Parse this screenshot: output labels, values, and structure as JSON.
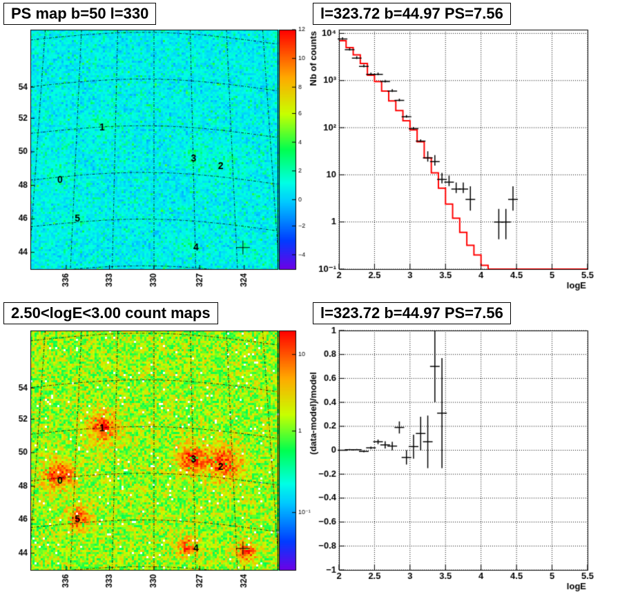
{
  "chart_data": [
    {
      "type": "heatmap",
      "title": "PS map b=50 l=330",
      "x_tick_labels": [
        "336",
        "333",
        "330",
        "327",
        "324"
      ],
      "y_tick_labels": [
        "44",
        "46",
        "48",
        "50",
        "52",
        "54"
      ],
      "colorbar_ticks": [
        "12",
        "10",
        "8",
        "6",
        "4",
        "2",
        "0",
        "−2",
        "−4"
      ],
      "colorbar_range": [
        -5,
        12
      ],
      "colorbar_scale": "linear",
      "source_labels": [
        "0",
        "1",
        "2",
        "3",
        "4",
        "5"
      ]
    },
    {
      "type": "line",
      "title": "l=323.72 b=44.97 PS=7.56",
      "xlabel": "logE",
      "ylabel": "Nb of counts",
      "yscale": "log",
      "xlim": [
        2,
        5.5
      ],
      "ylim": [
        0.1,
        12000
      ],
      "x_tick_labels": [
        "2",
        "2.5",
        "3",
        "3.5",
        "4",
        "4.5",
        "5",
        "5.5"
      ],
      "y_tick_labels": [
        "10⁻¹",
        "1",
        "10",
        "10²",
        "10³",
        "10⁴"
      ],
      "grid": true,
      "series": [
        {
          "role": "model",
          "color": "#ff0000",
          "bin_edges": [
            2.0,
            2.1,
            2.2,
            2.3,
            2.4,
            2.5,
            2.6,
            2.7,
            2.8,
            2.9,
            3.0,
            3.1,
            3.2,
            3.3,
            3.4,
            3.5,
            3.6,
            3.7,
            3.8,
            3.9,
            4.0,
            4.1,
            4.2,
            4.3,
            4.4,
            4.5,
            4.6,
            4.7,
            4.8,
            4.9,
            5.0,
            5.1,
            5.2,
            5.3,
            5.4,
            5.5
          ],
          "values": [
            7000,
            5000,
            3500,
            2300,
            1300,
            950,
            600,
            370,
            230,
            140,
            90,
            50,
            23,
            11,
            5.2,
            2.4,
            1.2,
            0.6,
            0.32,
            0.2,
            0.12,
            0.1,
            0.1,
            0.1,
            0.1,
            0.1,
            0.1,
            0.1,
            0.1,
            0.1,
            0.1,
            0.1,
            0.1,
            0.1,
            0.1
          ]
        },
        {
          "role": "data",
          "color": "#000000",
          "points": [
            {
              "x": 2.05,
              "y": 7600
            },
            {
              "x": 2.15,
              "y": 4500
            },
            {
              "x": 2.25,
              "y": 3000
            },
            {
              "x": 2.35,
              "y": 2000
            },
            {
              "x": 2.45,
              "y": 1350
            },
            {
              "x": 2.55,
              "y": 1350
            },
            {
              "x": 2.65,
              "y": 950
            },
            {
              "x": 2.75,
              "y": 600
            },
            {
              "x": 2.85,
              "y": 380
            },
            {
              "x": 2.95,
              "y": 170
            },
            {
              "x": 3.05,
              "y": 95
            },
            {
              "x": 3.15,
              "y": 52
            },
            {
              "x": 3.25,
              "y": 23
            },
            {
              "x": 3.35,
              "y": 19
            },
            {
              "x": 3.45,
              "y": 8
            },
            {
              "x": 3.55,
              "y": 7
            },
            {
              "x": 3.65,
              "y": 5
            },
            {
              "x": 3.75,
              "y": 5
            },
            {
              "x": 3.85,
              "y": 3
            },
            {
              "x": 4.25,
              "y": 1
            },
            {
              "x": 4.35,
              "y": 1
            },
            {
              "x": 4.45,
              "y": 3
            }
          ]
        }
      ]
    },
    {
      "type": "heatmap",
      "title": "2.50<logE<3.00 count maps",
      "x_tick_labels": [
        "336",
        "333",
        "330",
        "327",
        "324"
      ],
      "y_tick_labels": [
        "44",
        "46",
        "48",
        "50",
        "52",
        "54"
      ],
      "colorbar_ticks": [
        "10",
        "1",
        "10⁻¹"
      ],
      "colorbar_scale": "log",
      "source_labels": [
        "0",
        "1",
        "2",
        "3",
        "4",
        "5"
      ]
    },
    {
      "type": "scatter",
      "title": "l=323.72 b=44.97 PS=7.56",
      "xlabel": "logE",
      "ylabel": "(data-model)/model",
      "xlim": [
        2,
        5.5
      ],
      "ylim": [
        -1,
        1
      ],
      "x_tick_labels": [
        "2",
        "2.5",
        "3",
        "3.5",
        "4",
        "4.5",
        "5",
        "5.5"
      ],
      "y_tick_labels": [
        "−1",
        "−0.8",
        "−0.6",
        "−0.4",
        "−0.2",
        "0",
        "0.2",
        "0.4",
        "0.6",
        "0.8",
        "1"
      ],
      "grid": true,
      "points": [
        {
          "x": 2.05,
          "y": 0.0,
          "err": 0.005
        },
        {
          "x": 2.15,
          "y": 0.005,
          "err": 0.005
        },
        {
          "x": 2.25,
          "y": 0.005,
          "err": 0.005
        },
        {
          "x": 2.35,
          "y": -0.01,
          "err": 0.008
        },
        {
          "x": 2.45,
          "y": 0.02,
          "err": 0.01
        },
        {
          "x": 2.55,
          "y": 0.07,
          "err": 0.02
        },
        {
          "x": 2.65,
          "y": 0.045,
          "err": 0.03
        },
        {
          "x": 2.75,
          "y": 0.035,
          "err": 0.035
        },
        {
          "x": 2.85,
          "y": 0.19,
          "err": 0.05
        },
        {
          "x": 2.95,
          "y": -0.06,
          "err": 0.06
        },
        {
          "x": 3.05,
          "y": 0.03,
          "err": 0.1
        },
        {
          "x": 3.15,
          "y": 0.14,
          "err": 0.14
        },
        {
          "x": 3.25,
          "y": 0.07,
          "err": 0.22
        },
        {
          "x": 3.35,
          "y": 0.7,
          "err": 0.3
        },
        {
          "x": 3.45,
          "y": 0.31,
          "err": 0.46
        }
      ]
    }
  ]
}
